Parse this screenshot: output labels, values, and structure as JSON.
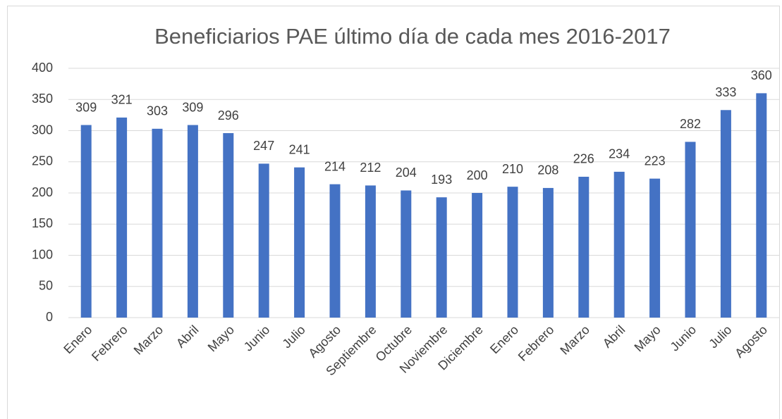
{
  "chart_data": {
    "type": "bar",
    "title": "Beneficiarios PAE último día de cada mes 2016-2017",
    "categories": [
      "Enero",
      "Febrero",
      "Marzo",
      "Abril",
      "Mayo",
      "Junio",
      "Julio",
      "Agosto",
      "Septiembre",
      "Octubre",
      "Noviembre",
      "Diciembre",
      "Enero",
      "Febrero",
      "Marzo",
      "Abril",
      "Mayo",
      "Junio",
      "Julio",
      "Agosto"
    ],
    "values": [
      309,
      321,
      303,
      309,
      296,
      247,
      241,
      214,
      212,
      204,
      193,
      200,
      210,
      208,
      226,
      234,
      223,
      282,
      333,
      360
    ],
    "color": "#4472c4",
    "ylim": [
      0,
      400
    ],
    "yticks": [
      0,
      50,
      100,
      150,
      200,
      250,
      300,
      350,
      400
    ],
    "grid": true
  }
}
